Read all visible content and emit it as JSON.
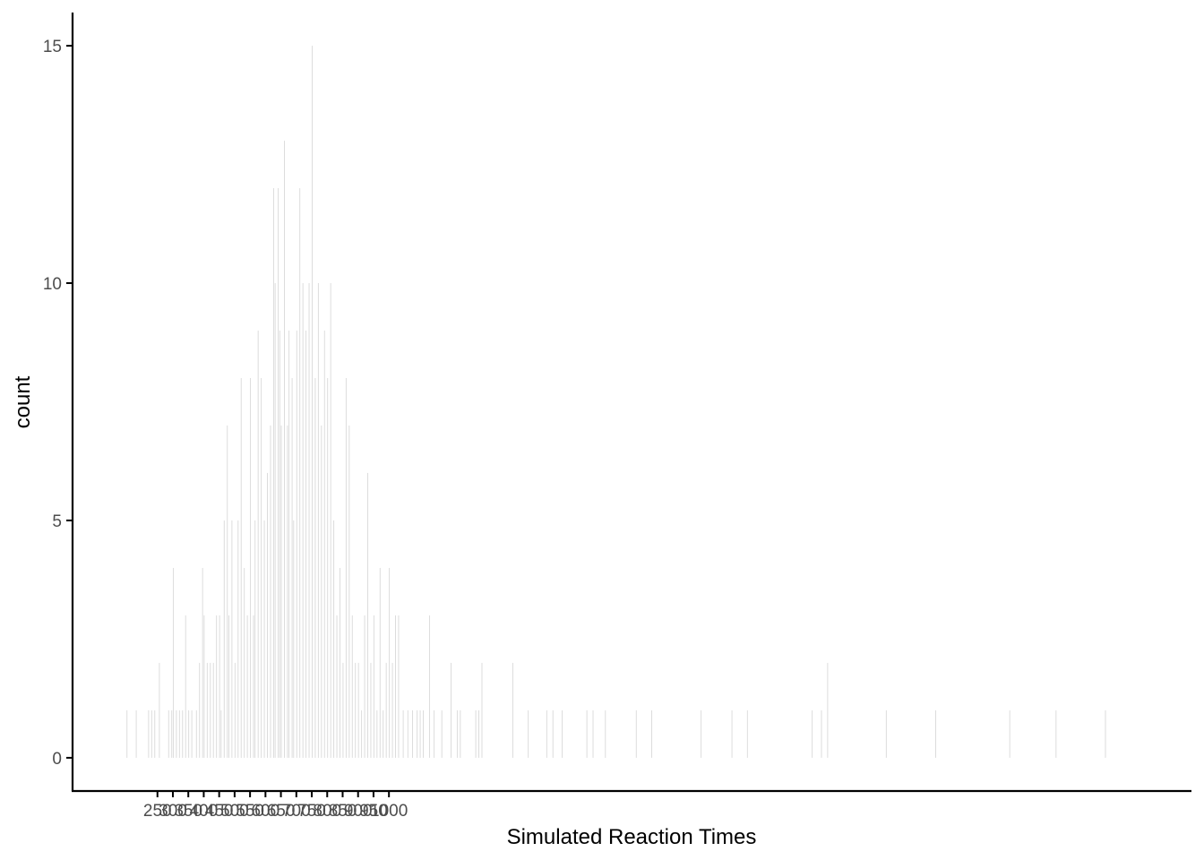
{
  "chart_data": {
    "type": "bar",
    "title": "",
    "xlabel": "Simulated Reaction Times",
    "ylabel": "count",
    "bin_width": 1,
    "xlim": [
      -25,
      3600
    ],
    "ylim": [
      -0.7,
      15.7
    ],
    "x_ticks": [
      250,
      300,
      350,
      400,
      450,
      500,
      550,
      600,
      650,
      700,
      750,
      800,
      850,
      900,
      950,
      1000
    ],
    "y_ticks": [
      0,
      5,
      10,
      15
    ],
    "grid": false,
    "legend": "none",
    "bar_color": "#d9d9d9",
    "axis_color": "#000000",
    "bins": [
      {
        "x": 150,
        "count": 1
      },
      {
        "x": 180,
        "count": 1
      },
      {
        "x": 220,
        "count": 1
      },
      {
        "x": 230,
        "count": 1
      },
      {
        "x": 240,
        "count": 1
      },
      {
        "x": 255,
        "count": 2
      },
      {
        "x": 285,
        "count": 1
      },
      {
        "x": 295,
        "count": 1
      },
      {
        "x": 300,
        "count": 4
      },
      {
        "x": 310,
        "count": 1
      },
      {
        "x": 320,
        "count": 1
      },
      {
        "x": 330,
        "count": 1
      },
      {
        "x": 340,
        "count": 3
      },
      {
        "x": 350,
        "count": 1
      },
      {
        "x": 360,
        "count": 1
      },
      {
        "x": 375,
        "count": 1
      },
      {
        "x": 385,
        "count": 2
      },
      {
        "x": 395,
        "count": 4
      },
      {
        "x": 400,
        "count": 3
      },
      {
        "x": 410,
        "count": 2
      },
      {
        "x": 420,
        "count": 2
      },
      {
        "x": 430,
        "count": 2
      },
      {
        "x": 440,
        "count": 3
      },
      {
        "x": 450,
        "count": 3
      },
      {
        "x": 455,
        "count": 1
      },
      {
        "x": 465,
        "count": 5
      },
      {
        "x": 475,
        "count": 7
      },
      {
        "x": 480,
        "count": 3
      },
      {
        "x": 490,
        "count": 5
      },
      {
        "x": 500,
        "count": 2
      },
      {
        "x": 510,
        "count": 5
      },
      {
        "x": 520,
        "count": 8
      },
      {
        "x": 530,
        "count": 4
      },
      {
        "x": 540,
        "count": 3
      },
      {
        "x": 550,
        "count": 8
      },
      {
        "x": 560,
        "count": 3
      },
      {
        "x": 565,
        "count": 5
      },
      {
        "x": 575,
        "count": 9
      },
      {
        "x": 585,
        "count": 8
      },
      {
        "x": 595,
        "count": 5
      },
      {
        "x": 605,
        "count": 6
      },
      {
        "x": 615,
        "count": 7
      },
      {
        "x": 625,
        "count": 12
      },
      {
        "x": 630,
        "count": 10
      },
      {
        "x": 640,
        "count": 12
      },
      {
        "x": 645,
        "count": 9
      },
      {
        "x": 650,
        "count": 7
      },
      {
        "x": 660,
        "count": 13
      },
      {
        "x": 670,
        "count": 7
      },
      {
        "x": 675,
        "count": 9
      },
      {
        "x": 685,
        "count": 8
      },
      {
        "x": 690,
        "count": 5
      },
      {
        "x": 700,
        "count": 9
      },
      {
        "x": 710,
        "count": 12
      },
      {
        "x": 720,
        "count": 10
      },
      {
        "x": 730,
        "count": 9
      },
      {
        "x": 740,
        "count": 10
      },
      {
        "x": 750,
        "count": 15
      },
      {
        "x": 760,
        "count": 8
      },
      {
        "x": 770,
        "count": 10
      },
      {
        "x": 780,
        "count": 7
      },
      {
        "x": 790,
        "count": 9
      },
      {
        "x": 800,
        "count": 8
      },
      {
        "x": 810,
        "count": 10
      },
      {
        "x": 820,
        "count": 5
      },
      {
        "x": 830,
        "count": 3
      },
      {
        "x": 840,
        "count": 4
      },
      {
        "x": 850,
        "count": 2
      },
      {
        "x": 860,
        "count": 8
      },
      {
        "x": 870,
        "count": 7
      },
      {
        "x": 880,
        "count": 3
      },
      {
        "x": 890,
        "count": 2
      },
      {
        "x": 900,
        "count": 2
      },
      {
        "x": 910,
        "count": 1
      },
      {
        "x": 920,
        "count": 3
      },
      {
        "x": 930,
        "count": 6
      },
      {
        "x": 940,
        "count": 2
      },
      {
        "x": 950,
        "count": 3
      },
      {
        "x": 960,
        "count": 1
      },
      {
        "x": 970,
        "count": 4
      },
      {
        "x": 980,
        "count": 1
      },
      {
        "x": 990,
        "count": 2
      },
      {
        "x": 1000,
        "count": 4
      },
      {
        "x": 1010,
        "count": 2
      },
      {
        "x": 1020,
        "count": 3
      },
      {
        "x": 1030,
        "count": 3
      },
      {
        "x": 1045,
        "count": 1
      },
      {
        "x": 1060,
        "count": 1
      },
      {
        "x": 1075,
        "count": 1
      },
      {
        "x": 1090,
        "count": 1
      },
      {
        "x": 1100,
        "count": 1
      },
      {
        "x": 1110,
        "count": 1
      },
      {
        "x": 1130,
        "count": 3
      },
      {
        "x": 1145,
        "count": 1
      },
      {
        "x": 1170,
        "count": 1
      },
      {
        "x": 1200,
        "count": 2
      },
      {
        "x": 1220,
        "count": 1
      },
      {
        "x": 1230,
        "count": 1
      },
      {
        "x": 1280,
        "count": 1
      },
      {
        "x": 1290,
        "count": 1
      },
      {
        "x": 1300,
        "count": 2
      },
      {
        "x": 1400,
        "count": 2
      },
      {
        "x": 1450,
        "count": 1
      },
      {
        "x": 1510,
        "count": 1
      },
      {
        "x": 1530,
        "count": 1
      },
      {
        "x": 1560,
        "count": 1
      },
      {
        "x": 1640,
        "count": 1
      },
      {
        "x": 1660,
        "count": 1
      },
      {
        "x": 1700,
        "count": 1
      },
      {
        "x": 1800,
        "count": 1
      },
      {
        "x": 1850,
        "count": 1
      },
      {
        "x": 2010,
        "count": 1
      },
      {
        "x": 2110,
        "count": 1
      },
      {
        "x": 2160,
        "count": 1
      },
      {
        "x": 2370,
        "count": 1
      },
      {
        "x": 2400,
        "count": 1
      },
      {
        "x": 2420,
        "count": 2
      },
      {
        "x": 2610,
        "count": 1
      },
      {
        "x": 2770,
        "count": 1
      },
      {
        "x": 3010,
        "count": 1
      },
      {
        "x": 3160,
        "count": 1
      },
      {
        "x": 3320,
        "count": 1
      }
    ]
  }
}
